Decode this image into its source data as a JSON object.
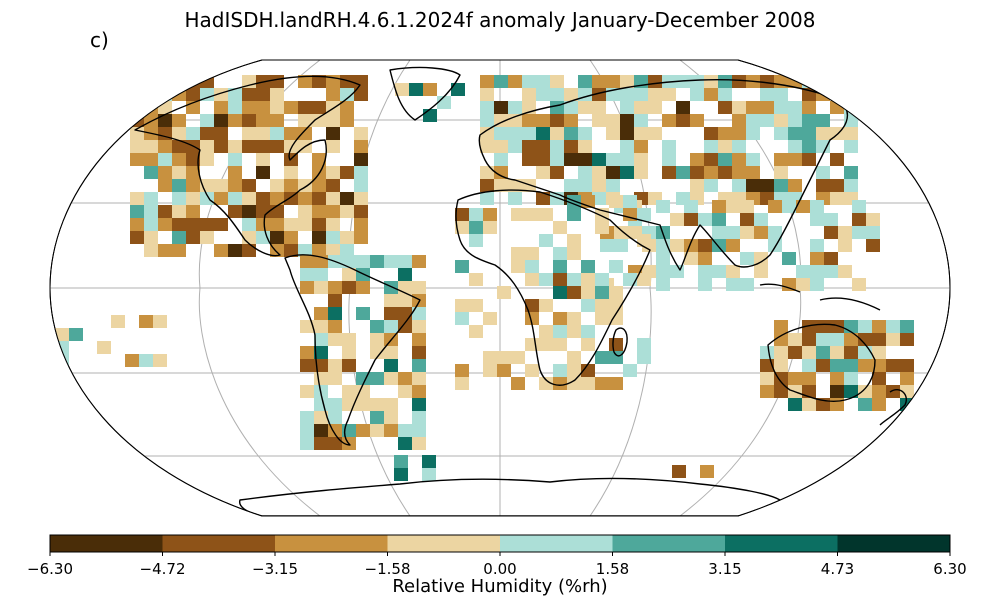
{
  "title": "HadISDH.landRH.4.6.1.2024f anomaly January-December 2008",
  "panel_label": "c)",
  "colorbar": {
    "label": "Relative Humidity (%rh)",
    "ticks": [
      "−6.30",
      "−4.72",
      "−3.15",
      "−1.58",
      "0.00",
      "1.58",
      "3.15",
      "4.73",
      "6.30"
    ],
    "colors": [
      "#4a2d08",
      "#8e5318",
      "#c8913f",
      "#ecd5a2",
      "#acdfd7",
      "#4ea89b",
      "#0c6f62",
      "#01352c"
    ]
  },
  "map": {
    "projection": "Robinson",
    "coastline_color": "#000000",
    "graticule_color": "#b0b0b0",
    "gridded_anomaly_samples": [
      {
        "lon": -100,
        "lat": 42,
        "bin": 1
      },
      {
        "lon": -95,
        "lat": 37,
        "bin": 0
      },
      {
        "lon": -80,
        "lat": 40,
        "bin": 3
      },
      {
        "lon": -75,
        "lat": 20,
        "bin": 4
      },
      {
        "lon": -50,
        "lat": -10,
        "bin": 5
      },
      {
        "lon": -60,
        "lat": -25,
        "bin": 1
      },
      {
        "lon": 30,
        "lat": 55,
        "bin": 4
      },
      {
        "lon": 75,
        "lat": 48,
        "bin": 1
      },
      {
        "lon": 100,
        "lat": 35,
        "bin": 2
      },
      {
        "lon": 135,
        "lat": -25,
        "bin": 1
      },
      {
        "lon": 145,
        "lat": -30,
        "bin": 5
      },
      {
        "lon": 25,
        "lat": -25,
        "bin": 6
      }
    ]
  }
}
